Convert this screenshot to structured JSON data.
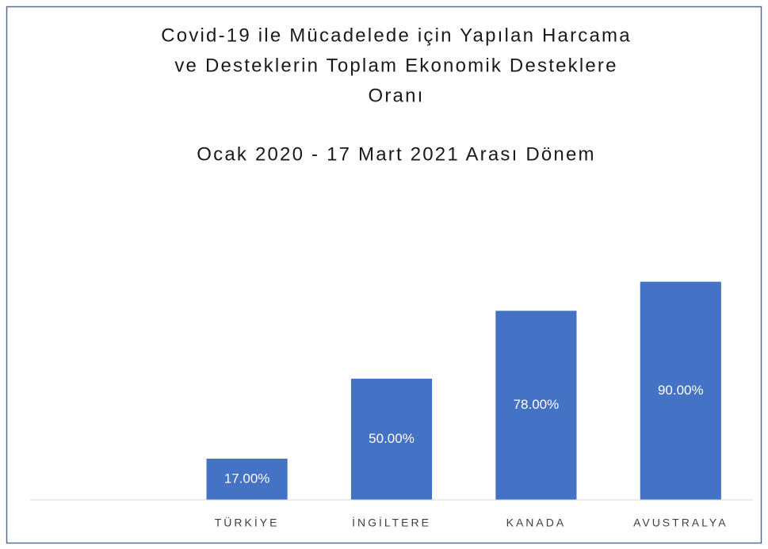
{
  "chart_data": {
    "type": "bar",
    "title": [
      "Covid-19 ile Mücadelede için Yapılan Harcama",
      "ve Desteklerin Toplam Ekonomik Desteklere",
      "Oranı"
    ],
    "subtitle": "Ocak 2020 - 17 Mart 2021 Arası Dönem",
    "categories": [
      null,
      "TÜRKİYE",
      "İNGİLTERE",
      "KANADA",
      "AVUSTRALYA"
    ],
    "values": [
      null,
      17,
      50,
      78,
      90
    ],
    "value_labels": [
      null,
      "17.00%",
      "50.00%",
      "78.00%",
      "90.00%"
    ],
    "color": "#4472c4",
    "ylim": [
      0,
      100
    ]
  }
}
